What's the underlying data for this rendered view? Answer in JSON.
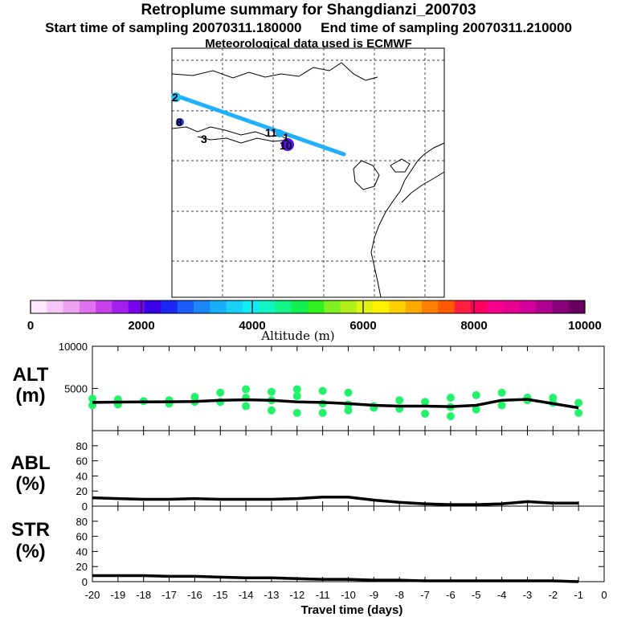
{
  "header": {
    "title": "Retroplume summary for Shangdianzi_200703",
    "start_label": "Start time of sampling 20070311.180000",
    "end_label": "End time of sampling 20070311.210000",
    "met_label": "Meteorological data used is ECMWF"
  },
  "map": {
    "plume_color": "#1fb0ff",
    "cluster_labels": [
      "2",
      "8",
      "3",
      "11",
      "1",
      "10"
    ]
  },
  "colorbar": {
    "label": "Altitude (m)",
    "ticks": [
      "0",
      "2000",
      "4000",
      "6000",
      "8000",
      "10000"
    ],
    "colors": [
      "#ffe6ff",
      "#f6c6f8",
      "#eda2f2",
      "#e070ee",
      "#c840ea",
      "#a020ee",
      "#7a00f0",
      "#3a00e8",
      "#1a26f6",
      "#1a5cf8",
      "#1a86f8",
      "#18aef8",
      "#18d0f8",
      "#10ecf4",
      "#10f4c4",
      "#10f488",
      "#10f050",
      "#30f020",
      "#80f020",
      "#b0f018",
      "#e0f410",
      "#fff000",
      "#ffd000",
      "#ffaa00",
      "#ff8000",
      "#ff5a00",
      "#ff2040",
      "#ff0060",
      "#f8008c",
      "#e80090",
      "#d00098",
      "#b00090",
      "#8a007c",
      "#6a0060"
    ]
  },
  "chart_data": [
    {
      "type": "scatter",
      "name": "ALT",
      "title": "ALT",
      "unit": "(m)",
      "xlabel": "Travel time (days)",
      "ylabel": "ALT (m)",
      "xlim": [
        -20,
        0
      ],
      "ylim": [
        0,
        10000
      ],
      "yticks": [
        "10000",
        "5000"
      ],
      "mean_line": {
        "x": [
          -20,
          -19,
          -18,
          -17,
          -16,
          -15,
          -14,
          -13,
          -12,
          -11,
          -10,
          -9,
          -8,
          -7,
          -6,
          -5,
          -4,
          -3,
          -2,
          -1
        ],
        "y": [
          3350,
          3380,
          3400,
          3420,
          3450,
          3600,
          3650,
          3600,
          3400,
          3350,
          3200,
          3000,
          2900,
          2900,
          2850,
          3000,
          3600,
          3700,
          3200,
          2700
        ]
      },
      "clusters": {
        "x": [
          -20,
          -19,
          -18,
          -17,
          -16,
          -15,
          -14,
          -13,
          -12,
          -11,
          -10,
          -9,
          -8,
          -7,
          -6,
          -5,
          -4,
          -3,
          -2,
          -1
        ],
        "y": [
          [
            3800,
            3000
          ],
          [
            3700,
            3100
          ],
          [
            3500
          ],
          [
            3600,
            3200
          ],
          [
            4000,
            3400
          ],
          [
            4500,
            3400
          ],
          [
            4900,
            3900,
            2900
          ],
          [
            4600,
            3600,
            2400
          ],
          [
            4900,
            4100,
            2100
          ],
          [
            4700,
            3200,
            2100
          ],
          [
            4500,
            3100,
            2400
          ],
          [
            2900,
            2700
          ],
          [
            3600,
            2600
          ],
          [
            3400,
            2000
          ],
          [
            3900,
            2800,
            1700
          ],
          [
            4200,
            2500
          ],
          [
            4500,
            3000
          ],
          [
            3900,
            3600
          ],
          [
            3900,
            3300
          ],
          [
            3300,
            2100
          ]
        ],
        "color": "#22f26a"
      }
    },
    {
      "type": "line",
      "name": "ABL",
      "title": "ABL",
      "unit": "(%)",
      "ylim": [
        0,
        100
      ],
      "yticks": [
        "80",
        "60",
        "40",
        "20",
        "0"
      ],
      "x": [
        -20,
        -19,
        -18,
        -17,
        -16,
        -15,
        -14,
        -13,
        -12,
        -11,
        -10,
        -9,
        -8,
        -7,
        -6,
        -5,
        -4,
        -3,
        -2,
        -1
      ],
      "values": [
        11,
        10,
        9,
        9,
        10,
        9,
        9,
        9,
        10,
        12,
        12,
        8,
        5,
        3,
        2,
        2,
        3,
        6,
        4,
        4
      ]
    },
    {
      "type": "line",
      "name": "STR",
      "title": "STR",
      "unit": "(%)",
      "ylim": [
        0,
        100
      ],
      "yticks": [
        "80",
        "60",
        "40",
        "20",
        "0"
      ],
      "x": [
        -20,
        -19,
        -18,
        -17,
        -16,
        -15,
        -14,
        -13,
        -12,
        -11,
        -10,
        -9,
        -8,
        -7,
        -6,
        -5,
        -4,
        -3,
        -2,
        -1
      ],
      "values": [
        8,
        8,
        8,
        7,
        7,
        6,
        5,
        5,
        4,
        3,
        3,
        2,
        2,
        1,
        1,
        1,
        1,
        1,
        1,
        0
      ]
    }
  ],
  "xaxis": {
    "ticks": [
      "-20",
      "-19",
      "-18",
      "-17",
      "-16",
      "-15",
      "-14",
      "-13",
      "-12",
      "-11",
      "-10",
      "-9",
      "-8",
      "-7",
      "-6",
      "-5",
      "-4",
      "-3",
      "-2",
      "-1",
      "0"
    ],
    "label": "Travel time (days)"
  }
}
